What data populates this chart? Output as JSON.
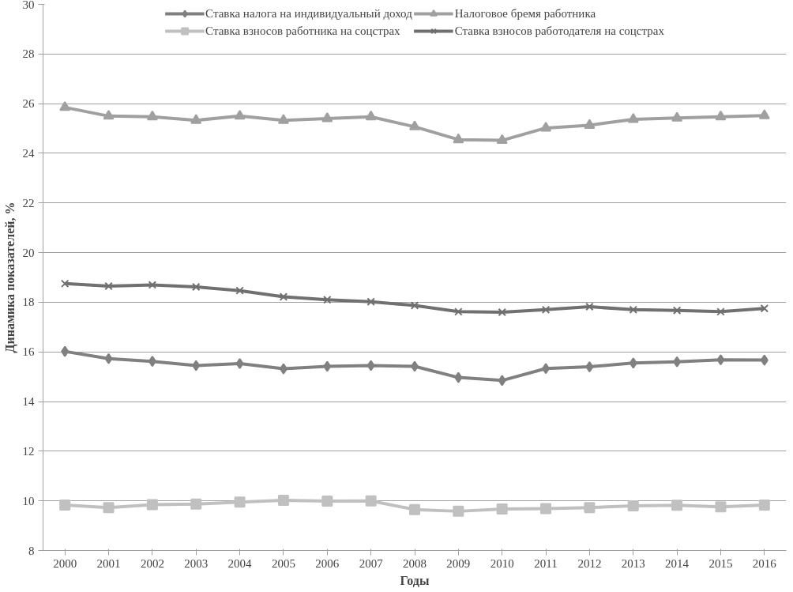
{
  "chart_data": {
    "type": "line",
    "xlabel": "Годы",
    "ylabel": "Динамика показателей, %",
    "categories": [
      "2000",
      "2001",
      "2002",
      "2003",
      "2004",
      "2005",
      "2006",
      "2007",
      "2008",
      "2009",
      "2010",
      "2011",
      "2012",
      "2013",
      "2014",
      "2015",
      "2016"
    ],
    "series": [
      {
        "name": "Ставка налога на индивидуальный доход",
        "color": "#808080",
        "marker": "diamond",
        "values": [
          16.02,
          15.73,
          15.62,
          15.45,
          15.53,
          15.32,
          15.42,
          15.45,
          15.42,
          14.97,
          14.85,
          15.33,
          15.4,
          15.55,
          15.6,
          15.68,
          15.67
        ]
      },
      {
        "name": "Ставка взносов работника на соцстрах",
        "color": "#c0c0c0",
        "marker": "square",
        "values": [
          9.83,
          9.73,
          9.85,
          9.87,
          9.95,
          10.02,
          9.99,
          10.0,
          9.65,
          9.58,
          9.67,
          9.69,
          9.73,
          9.8,
          9.82,
          9.76,
          9.83
        ]
      },
      {
        "name": "Налоговое бремя работника",
        "color": "#a0a0a0",
        "marker": "triangle",
        "values": [
          25.85,
          25.5,
          25.47,
          25.33,
          25.5,
          25.33,
          25.4,
          25.47,
          25.07,
          24.55,
          24.52,
          25.02,
          25.13,
          25.37,
          25.42,
          25.47,
          25.52
        ]
      },
      {
        "name": "Ставка взносов работодателя на соцстрах",
        "color": "#707070",
        "marker": "cross",
        "values": [
          18.75,
          18.65,
          18.7,
          18.62,
          18.47,
          18.22,
          18.1,
          18.02,
          17.87,
          17.62,
          17.6,
          17.7,
          17.82,
          17.7,
          17.67,
          17.62,
          17.75
        ]
      }
    ],
    "ylim": [
      8,
      30
    ],
    "yticks": [
      8,
      10,
      12,
      14,
      16,
      18,
      20,
      22,
      24,
      26,
      28,
      30
    ],
    "grid": "y",
    "legend": "top",
    "line_style": "solid"
  }
}
